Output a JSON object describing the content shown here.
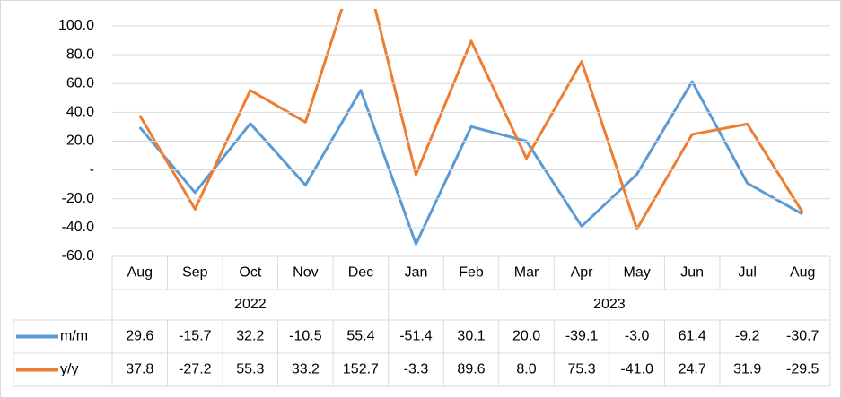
{
  "chart_data": {
    "type": "line",
    "categories": [
      "Aug",
      "Sep",
      "Oct",
      "Nov",
      "Dec",
      "Jan",
      "Feb",
      "Mar",
      "Apr",
      "May",
      "Jun",
      "Jul",
      "Aug"
    ],
    "groups": [
      "2022",
      null,
      null,
      null,
      null,
      "2023",
      null,
      null,
      null,
      null,
      null,
      null,
      null
    ],
    "series": [
      {
        "name": "m/m",
        "color": "#5b9bd5",
        "values": [
          29.6,
          -15.7,
          32.2,
          -10.5,
          55.4,
          -51.4,
          30.1,
          20,
          -39.1,
          -3,
          61.4,
          -9.2,
          -30.7
        ],
        "value_labels": [
          "29.6",
          "-15.7",
          "32.2",
          "-10.5",
          "55.4",
          "-51.4",
          "30.1",
          "20.0",
          "-39.1",
          "-3.0",
          "61.4",
          "-9.2",
          "-30.7"
        ]
      },
      {
        "name": "y/y",
        "color": "#ed7d31",
        "values": [
          37.8,
          -27.2,
          55.3,
          33.2,
          152.7,
          -3.3,
          89.6,
          8,
          75.3,
          -41,
          24.7,
          31.9,
          -29.5
        ],
        "value_labels": [
          "37.8",
          "-27.2",
          "55.3",
          "33.2",
          "152.7",
          "-3.3",
          "89.6",
          "8.0",
          "75.3",
          "-41.0",
          "24.7",
          "31.9",
          "-29.5"
        ]
      }
    ],
    "ylim": [
      -60,
      100
    ],
    "yticks": [
      {
        "value": -60,
        "label": "-60.0"
      },
      {
        "value": -40,
        "label": "-40.0"
      },
      {
        "value": -20,
        "label": "-20.0"
      },
      {
        "value": 0,
        "label": "-"
      },
      {
        "value": 20,
        "label": "20.0"
      },
      {
        "value": 40,
        "label": "40.0"
      },
      {
        "value": 60,
        "label": "60.0"
      },
      {
        "value": 80,
        "label": "80.0"
      },
      {
        "value": 100,
        "label": "100.0"
      }
    ],
    "grid": true
  }
}
